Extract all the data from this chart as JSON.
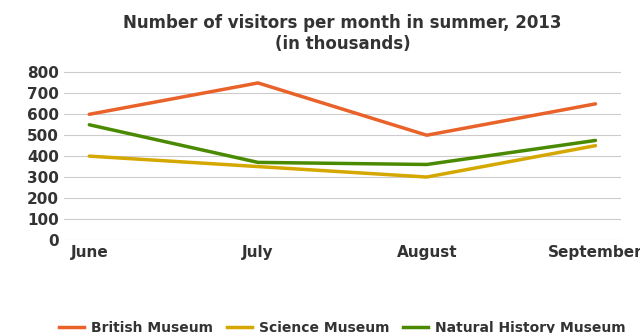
{
  "title": "Number of visitors per month in summer, 2013\n(in thousands)",
  "months": [
    "June",
    "July",
    "August",
    "September"
  ],
  "series": [
    {
      "name": "British Museum",
      "values": [
        600,
        750,
        500,
        650
      ],
      "color": "#E8622A"
    },
    {
      "name": "Science Museum",
      "values": [
        400,
        350,
        300,
        450
      ],
      "color": "#D4A800"
    },
    {
      "name": "Natural History Museum",
      "values": [
        550,
        370,
        360,
        475
      ],
      "color": "#4A8A00"
    }
  ],
  "ylim": [
    0,
    860
  ],
  "yticks": [
    0,
    100,
    200,
    300,
    400,
    500,
    600,
    700,
    800
  ],
  "grid_color": "#cccccc",
  "background_color": "#ffffff",
  "title_fontsize": 12,
  "tick_fontsize": 11,
  "legend_fontsize": 10,
  "line_width": 2.5,
  "text_color": "#333333"
}
